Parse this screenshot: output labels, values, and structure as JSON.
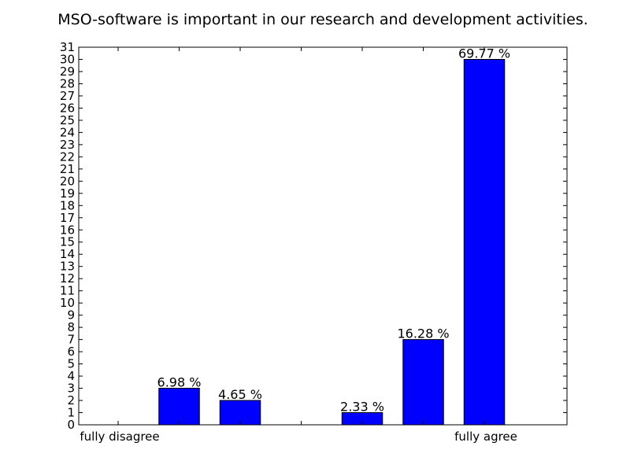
{
  "chart_data": {
    "type": "bar",
    "title": "MSO-software is important in our research and development activities.",
    "categories": [
      "1",
      "2",
      "3",
      "4",
      "5",
      "6",
      "7"
    ],
    "values": [
      0,
      3,
      2,
      0,
      1,
      7,
      30
    ],
    "data_labels": [
      "",
      "6.98 %",
      "4.65 %",
      "",
      "2.33 %",
      "16.28 %",
      "69.77 %"
    ],
    "x_tick_labels": [
      {
        "category": "1",
        "text": "fully disagree"
      },
      {
        "category": "7",
        "text": "fully agree"
      }
    ],
    "xlabel": "",
    "ylabel": "",
    "ylim": [
      0,
      31
    ],
    "y_ticks": [
      0,
      1,
      2,
      3,
      4,
      5,
      6,
      7,
      8,
      9,
      10,
      11,
      12,
      13,
      14,
      15,
      16,
      17,
      18,
      19,
      20,
      21,
      22,
      23,
      24,
      25,
      26,
      27,
      28,
      29,
      30,
      31
    ],
    "grid": false,
    "legend": "none",
    "bar_color": "#0000ff",
    "axis_color": "#000000"
  }
}
